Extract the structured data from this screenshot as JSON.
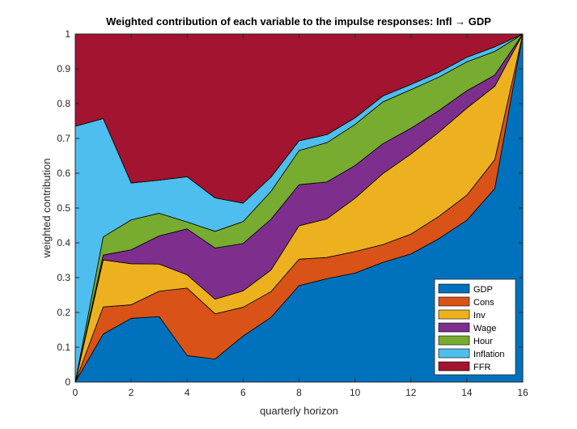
{
  "chart_data": {
    "type": "area",
    "stacked": true,
    "title": "Weighted contribution of each variable to the impulse responses: Infl → GDP",
    "xlabel": "quarterly horizon",
    "ylabel": "weighted contribution",
    "xlim": [
      0,
      16
    ],
    "ylim": [
      0,
      1
    ],
    "xticks": [
      0,
      2,
      4,
      6,
      8,
      10,
      12,
      14,
      16
    ],
    "yticks": [
      0,
      0.1,
      0.2,
      0.3,
      0.4,
      0.5,
      0.6,
      0.7,
      0.8,
      0.9,
      1
    ],
    "legend_position": "bottom-right",
    "grid": false,
    "x": [
      0,
      1,
      2,
      3,
      4,
      5,
      6,
      7,
      8,
      9,
      10,
      11,
      12,
      13,
      14,
      15,
      16
    ],
    "series": [
      {
        "name": "GDP",
        "color": "#0072BD",
        "values": [
          0.0,
          0.138,
          0.183,
          0.188,
          0.076,
          0.066,
          0.132,
          0.186,
          0.277,
          0.297,
          0.313,
          0.344,
          0.368,
          0.412,
          0.465,
          0.556,
          1.0
        ]
      },
      {
        "name": "Cons",
        "color": "#D95319",
        "values": [
          0.0,
          0.078,
          0.039,
          0.073,
          0.194,
          0.13,
          0.083,
          0.074,
          0.076,
          0.061,
          0.062,
          0.051,
          0.057,
          0.064,
          0.072,
          0.083,
          0.0
        ]
      },
      {
        "name": "Inv",
        "color": "#EDB120",
        "values": [
          0.0,
          0.135,
          0.118,
          0.078,
          0.038,
          0.042,
          0.047,
          0.062,
          0.096,
          0.111,
          0.153,
          0.204,
          0.23,
          0.242,
          0.25,
          0.211,
          0.0
        ]
      },
      {
        "name": "Wage",
        "color": "#7E2F8E",
        "values": [
          0.0,
          0.014,
          0.04,
          0.081,
          0.132,
          0.147,
          0.136,
          0.146,
          0.118,
          0.106,
          0.094,
          0.086,
          0.074,
          0.062,
          0.05,
          0.032,
          0.0
        ]
      },
      {
        "name": "Hour",
        "color": "#77AC30",
        "values": [
          0.0,
          0.052,
          0.086,
          0.065,
          0.02,
          0.048,
          0.063,
          0.08,
          0.098,
          0.113,
          0.118,
          0.12,
          0.111,
          0.096,
          0.083,
          0.068,
          0.0
        ]
      },
      {
        "name": "Inflation",
        "color": "#4DBEEE",
        "values": [
          0.735,
          0.34,
          0.106,
          0.095,
          0.13,
          0.096,
          0.053,
          0.041,
          0.028,
          0.023,
          0.019,
          0.017,
          0.015,
          0.014,
          0.013,
          0.013,
          0.0
        ]
      },
      {
        "name": "FFR",
        "color": "#A2142F",
        "values": [
          0.265,
          0.243,
          0.428,
          0.42,
          0.41,
          0.471,
          0.486,
          0.411,
          0.307,
          0.289,
          0.241,
          0.178,
          0.145,
          0.11,
          0.067,
          0.037,
          0.0
        ]
      }
    ]
  }
}
